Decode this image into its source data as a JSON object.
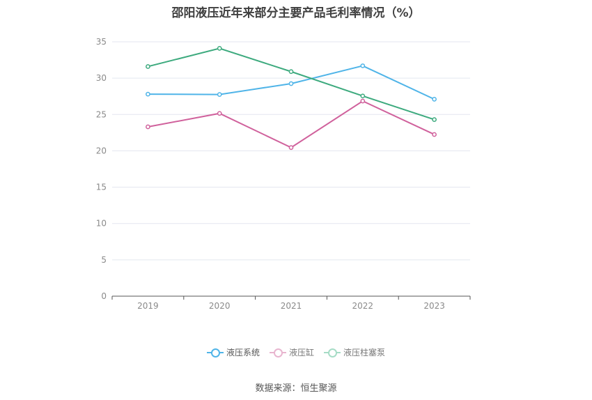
{
  "title": "邵阳液压近年来部分主要产品毛利率情况（%）",
  "source": "数据来源：恒生聚源",
  "chart_data": {
    "type": "line",
    "categories": [
      "2019",
      "2020",
      "2021",
      "2022",
      "2023"
    ],
    "y_ticks": [
      "0",
      "5",
      "10",
      "15",
      "20",
      "25",
      "30",
      "35"
    ],
    "ylim": [
      0,
      35
    ],
    "grid": true,
    "legend_position": "bottom",
    "series": [
      {
        "name": "液压系统",
        "color": "#4fb4e8",
        "values": [
          27.8,
          27.75,
          29.25,
          31.7,
          27.1
        ]
      },
      {
        "name": "液压缸",
        "color": "#d0619c",
        "values": [
          23.3,
          25.15,
          20.45,
          26.85,
          22.25
        ]
      },
      {
        "name": "液压柱塞泵",
        "color": "#3daa7e",
        "values": [
          31.6,
          34.1,
          30.9,
          27.55,
          24.3
        ]
      }
    ]
  }
}
